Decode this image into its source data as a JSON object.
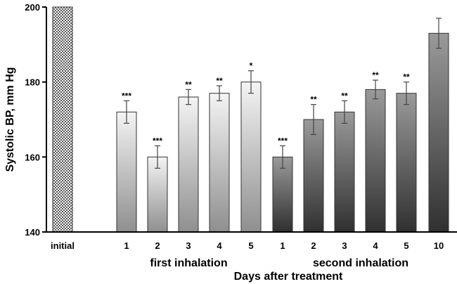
{
  "chart_data": {
    "type": "bar",
    "ylabel": "Systolic BP, mm Hg",
    "xlabel": "Days after treatment",
    "ylim": [
      140,
      200
    ],
    "yticks": [
      140,
      160,
      180,
      200
    ],
    "groups": [
      {
        "label": "",
        "start": 0,
        "end": 0
      },
      {
        "label": "first inhalation",
        "start": 1,
        "end": 5
      },
      {
        "label": "second inhalation",
        "start": 6,
        "end": 11
      }
    ],
    "bars": [
      {
        "category": "initial",
        "value": 200,
        "error": null,
        "significance": "",
        "style": "hatched"
      },
      {
        "category": "1",
        "value": 172,
        "error": 3,
        "significance": "***",
        "style": "light"
      },
      {
        "category": "2",
        "value": 160,
        "error": 3,
        "significance": "***",
        "style": "light"
      },
      {
        "category": "3",
        "value": 176,
        "error": 2,
        "significance": "**",
        "style": "light"
      },
      {
        "category": "4",
        "value": 177,
        "error": 2,
        "significance": "**",
        "style": "light"
      },
      {
        "category": "5",
        "value": 180,
        "error": 3,
        "significance": "*",
        "style": "light"
      },
      {
        "category": "1",
        "value": 160,
        "error": 3,
        "significance": "***",
        "style": "dark"
      },
      {
        "category": "2",
        "value": 170,
        "error": 4,
        "significance": "**",
        "style": "dark"
      },
      {
        "category": "3",
        "value": 172,
        "error": 3,
        "significance": "**",
        "style": "dark"
      },
      {
        "category": "4",
        "value": 178,
        "error": 2.5,
        "significance": "**",
        "style": "dark"
      },
      {
        "category": "5",
        "value": 177,
        "error": 3,
        "significance": "**",
        "style": "dark"
      },
      {
        "category": "10",
        "value": 193,
        "error": 4,
        "significance": "",
        "style": "dark"
      }
    ],
    "grid": false,
    "legend": "none"
  }
}
